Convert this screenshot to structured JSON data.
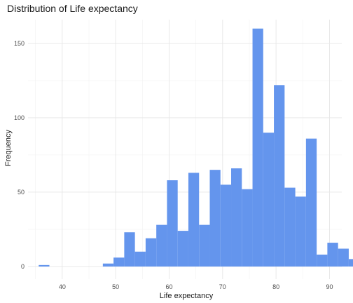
{
  "chart_data": {
    "type": "bar",
    "title": "Distribution of Life expectancy",
    "xlabel": "Life expectancy",
    "ylabel": "Frequency",
    "xlim": [
      33.6,
      92.3
    ],
    "ylim": [
      -8.5,
      166
    ],
    "x_ticks": [
      40,
      50,
      60,
      70,
      80,
      90
    ],
    "y_ticks": [
      0,
      50,
      100,
      150
    ],
    "grid": true,
    "bar_color": "#6495ED",
    "bins": [
      {
        "x0": 35.6,
        "x1": 37.6,
        "count": 1
      },
      {
        "x0": 37.6,
        "x1": 39.6,
        "count": 0
      },
      {
        "x0": 39.6,
        "x1": 41.6,
        "count": 0
      },
      {
        "x0": 41.6,
        "x1": 43.6,
        "count": 0
      },
      {
        "x0": 43.6,
        "x1": 45.6,
        "count": 0
      },
      {
        "x0": 45.6,
        "x1": 47.6,
        "count": 0
      },
      {
        "x0": 47.6,
        "x1": 49.6,
        "count": 2
      },
      {
        "x0": 49.6,
        "x1": 51.6,
        "count": 6
      },
      {
        "x0": 51.6,
        "x1": 53.6,
        "count": 23
      },
      {
        "x0": 53.6,
        "x1": 55.6,
        "count": 10
      },
      {
        "x0": 55.6,
        "x1": 57.6,
        "count": 19
      },
      {
        "x0": 57.6,
        "x1": 59.6,
        "count": 28
      },
      {
        "x0": 59.6,
        "x1": 61.6,
        "count": 58
      },
      {
        "x0": 61.6,
        "x1": 63.6,
        "count": 24
      },
      {
        "x0": 63.6,
        "x1": 65.6,
        "count": 63
      },
      {
        "x0": 65.6,
        "x1": 67.6,
        "count": 28
      },
      {
        "x0": 67.6,
        "x1": 69.6,
        "count": 65
      },
      {
        "x0": 69.6,
        "x1": 71.6,
        "count": 55
      },
      {
        "x0": 71.6,
        "x1": 73.6,
        "count": 66
      },
      {
        "x0": 73.6,
        "x1": 75.6,
        "count": 52
      },
      {
        "x0": 75.6,
        "x1": 77.6,
        "count": 160
      },
      {
        "x0": 77.6,
        "x1": 79.6,
        "count": 90
      },
      {
        "x0": 79.6,
        "x1": 81.6,
        "count": 122
      },
      {
        "x0": 81.6,
        "x1": 83.6,
        "count": 53
      },
      {
        "x0": 83.6,
        "x1": 85.6,
        "count": 47
      },
      {
        "x0": 85.6,
        "x1": 87.6,
        "count": 86
      },
      {
        "x0": 87.6,
        "x1": 89.6,
        "count": 8
      },
      {
        "x0": 89.6,
        "x1": 91.6,
        "count": 16
      },
      {
        "x0": 91.6,
        "x1": 93.6,
        "count": 12
      },
      {
        "x0": 93.6,
        "x1": 95.6,
        "count": 5
      }
    ]
  }
}
